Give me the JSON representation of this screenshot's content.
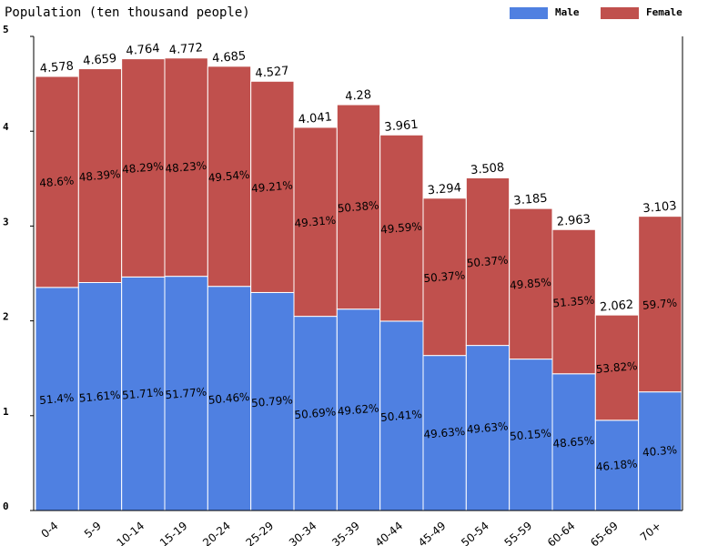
{
  "chart_data": {
    "type": "bar",
    "stacked": true,
    "title": "Population (ten thousand people)",
    "xlabel": "",
    "ylabel": "",
    "ylim": [
      0,
      5
    ],
    "yticks": [
      "0",
      "1",
      "2",
      "3",
      "4",
      "5"
    ],
    "legend_position": "top-right",
    "grid": false,
    "categories": [
      "0-4",
      "5-9",
      "10-14",
      "15-19",
      "20-24",
      "25-29",
      "30-34",
      "35-39",
      "40-44",
      "45-49",
      "50-54",
      "55-59",
      "60-64",
      "65-69",
      "70+"
    ],
    "totals": [
      4.578,
      4.659,
      4.764,
      4.772,
      4.685,
      4.527,
      4.041,
      4.28,
      3.961,
      3.294,
      3.508,
      3.185,
      2.963,
      2.062,
      3.103
    ],
    "total_labels": [
      "4.578",
      "4.659",
      "4.764",
      "4.772",
      "4.685",
      "4.527",
      "4.041",
      "4.28",
      "3.961",
      "3.294",
      "3.508",
      "3.185",
      "2.963",
      "2.062",
      "3.103"
    ],
    "series": [
      {
        "name": "Male",
        "color": "#4f80e1",
        "values": [
          2.353,
          2.404,
          2.463,
          2.47,
          2.364,
          2.299,
          2.048,
          2.124,
          1.997,
          1.635,
          1.741,
          1.597,
          1.442,
          0.952,
          1.251
        ],
        "percent_labels": [
          "51.4%",
          "51.61%",
          "51.71%",
          "51.77%",
          "50.46%",
          "50.79%",
          "50.69%",
          "49.62%",
          "50.41%",
          "49.63%",
          "49.63%",
          "50.15%",
          "48.65%",
          "46.18%",
          "40.3%"
        ]
      },
      {
        "name": "Female",
        "color": "#c0504d",
        "values": [
          2.225,
          2.255,
          2.301,
          2.302,
          2.321,
          2.228,
          1.993,
          2.156,
          1.964,
          1.659,
          1.767,
          1.588,
          1.521,
          1.11,
          1.852
        ],
        "percent_labels": [
          "48.6%",
          "48.39%",
          "48.29%",
          "48.23%",
          "49.54%",
          "49.21%",
          "49.31%",
          "50.38%",
          "49.59%",
          "50.37%",
          "50.37%",
          "49.85%",
          "51.35%",
          "53.82%",
          "59.7%"
        ]
      }
    ]
  }
}
